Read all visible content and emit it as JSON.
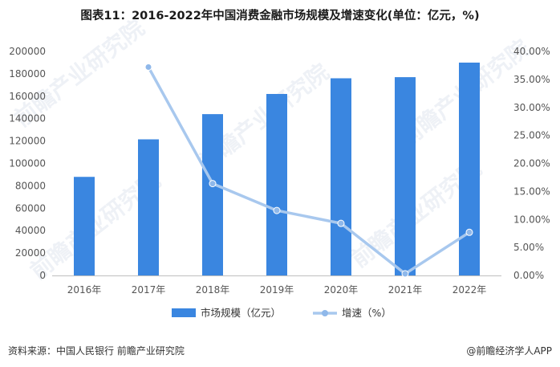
{
  "title": "图表11：2016-2022年中国消费金融市场规模及增速变化(单位：亿元，%)",
  "source": "资料来源：中国人民银行 前瞻产业研究院",
  "credit": "@前瞻经济学人APP",
  "watermark": "前瞻产业研究院",
  "colors": {
    "bar": "#3a86e0",
    "line": "#a8c8ee",
    "marker": "#8fb8ea"
  },
  "chart_data": {
    "type": "bar",
    "categories": [
      "2016年",
      "2017年",
      "2018年",
      "2019年",
      "2020年",
      "2021年",
      "2022年"
    ],
    "series": [
      {
        "name": "市场规模（亿元）",
        "type": "bar",
        "axis": "left",
        "values": [
          88000,
          121500,
          144000,
          162000,
          176000,
          177000,
          190000
        ]
      },
      {
        "name": "增速（%）",
        "type": "line",
        "axis": "right",
        "values": [
          null,
          37.2,
          16.4,
          11.6,
          9.3,
          0.3,
          7.7
        ]
      }
    ],
    "y_left": {
      "min": 0,
      "max": 200000,
      "ticks": [
        "0",
        "20000",
        "40000",
        "60000",
        "80000",
        "100000",
        "120000",
        "140000",
        "160000",
        "180000",
        "200000"
      ]
    },
    "y_right": {
      "min": 0,
      "max": 40,
      "ticks": [
        "0.00%",
        "5.00%",
        "10.00%",
        "15.00%",
        "20.00%",
        "25.00%",
        "30.00%",
        "35.00%",
        "40.00%"
      ]
    },
    "legend": [
      "市场规模（亿元）",
      "增速（%）"
    ],
    "legend_position": "bottom",
    "grid": false
  }
}
